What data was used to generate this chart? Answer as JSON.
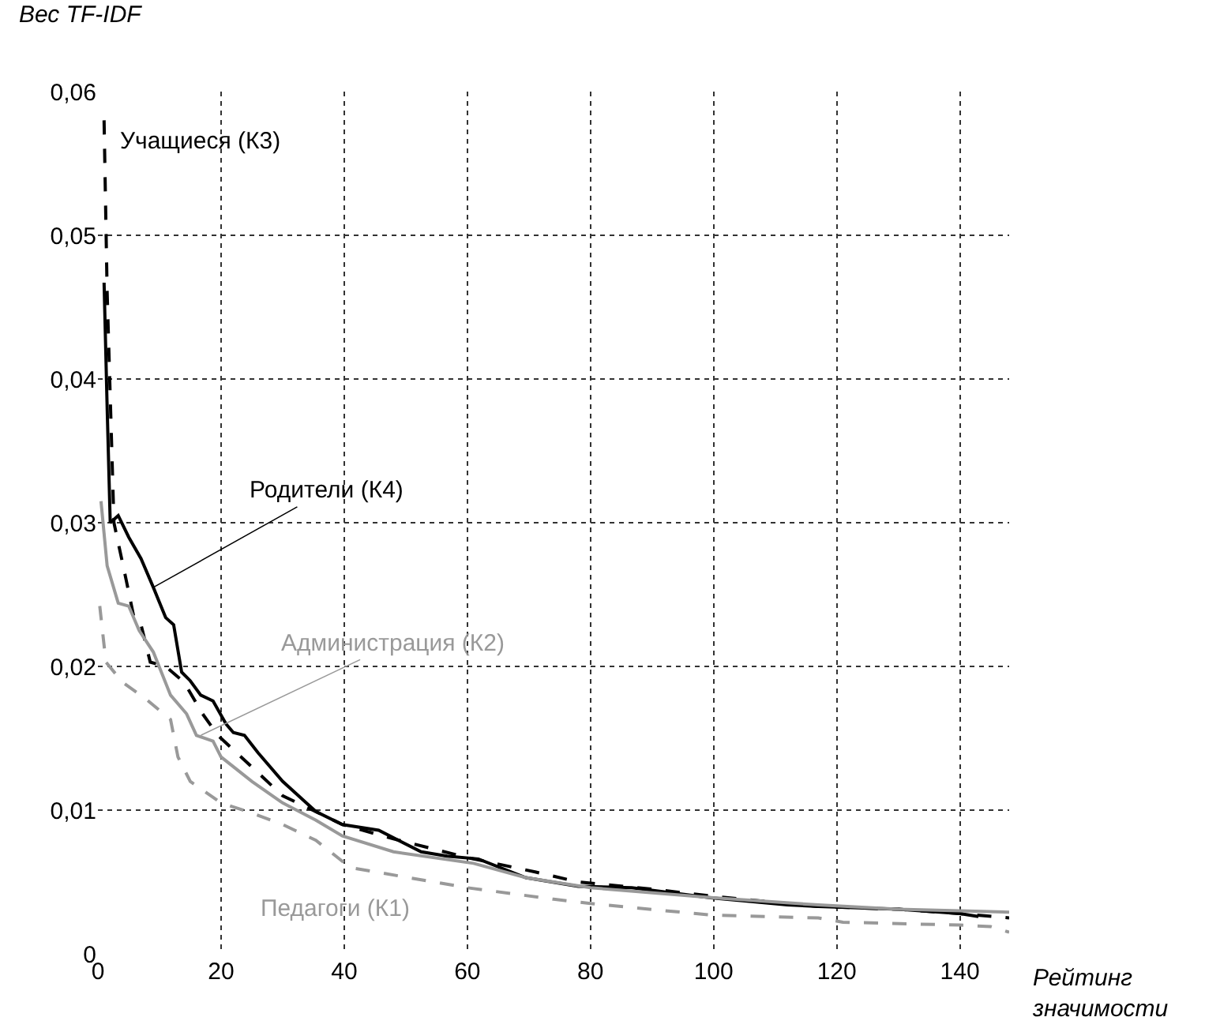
{
  "chart_data": {
    "type": "line",
    "xlabel": "Рейтинг значимости",
    "ylabel": "Вес TF-IDF",
    "xlim": [
      0,
      148
    ],
    "xticks": [
      0,
      20,
      40,
      60,
      80,
      100,
      120,
      140
    ],
    "ylim": [
      0,
      0.06
    ],
    "yticks": [
      0,
      {
        "value": 0.01,
        "label": "0,01"
      },
      {
        "value": 0.02,
        "label": "0,02"
      },
      {
        "value": 0.03,
        "label": "0,03"
      },
      {
        "value": 0.04,
        "label": "0,04"
      },
      {
        "value": 0.05,
        "label": "0,05"
      },
      {
        "value": 0.06,
        "label": "0,06"
      }
    ],
    "grid": true,
    "marker": "none",
    "series": [
      {
        "color": "#000000",
        "line_style": "dashed",
        "x": [
          1,
          1.5,
          2.6,
          4.6,
          5.9,
          7,
          8.5,
          11,
          14,
          17,
          19.5,
          25,
          30,
          35.4,
          39.7,
          48,
          60,
          71,
          78,
          90,
          100,
          117,
          130,
          140,
          148
        ],
        "values": [
          0.058,
          0.046,
          0.03,
          0.026,
          0.0233,
          0.0229,
          0.0203,
          0.02,
          0.0189,
          0.0167,
          0.0152,
          0.013,
          0.011,
          0.0099,
          0.009,
          0.008,
          0.0067,
          0.0057,
          0.005,
          0.0045,
          0.004,
          0.0033,
          0.0031,
          0.0028,
          0.0025
        ]
      },
      {
        "color": "#000000",
        "line_style": "solid",
        "x": [
          1,
          1.5,
          2,
          3.3,
          5,
          7,
          9,
          11,
          12.3,
          13.6,
          15,
          16.7,
          18.7,
          20.8,
          22,
          23.8,
          26,
          30,
          35.4,
          39.7,
          45.6,
          52.5,
          56.7,
          61.8,
          69.5,
          78,
          86.7,
          99.5,
          112,
          117,
          130,
          140,
          143
        ],
        "values": [
          0.0467,
          0.038,
          0.03,
          0.0305,
          0.029,
          0.0275,
          0.0255,
          0.0234,
          0.0229,
          0.0196,
          0.019,
          0.018,
          0.0176,
          0.016,
          0.0154,
          0.0152,
          0.014,
          0.012,
          0.0099,
          0.009,
          0.0086,
          0.0071,
          0.0068,
          0.0066,
          0.0053,
          0.0047,
          0.0046,
          0.0039,
          0.0034,
          0.0033,
          0.0031,
          0.0028,
          0.0026
        ]
      },
      {
        "color": "#999999",
        "line_style": "solid",
        "x": [
          0.5,
          1.5,
          3.3,
          5,
          6.7,
          9,
          11.8,
          14.4,
          16,
          18.7,
          20,
          25,
          30,
          35.4,
          39.7,
          48,
          61,
          69.5,
          80,
          100,
          117,
          130,
          140,
          148
        ],
        "values": [
          0.0315,
          0.027,
          0.0244,
          0.0242,
          0.0225,
          0.021,
          0.018,
          0.0167,
          0.0152,
          0.0148,
          0.0137,
          0.012,
          0.0105,
          0.0093,
          0.0082,
          0.0071,
          0.0063,
          0.0053,
          0.0046,
          0.0039,
          0.0034,
          0.0031,
          0.003,
          0.0029
        ]
      },
      {
        "color": "#999999",
        "line_style": "dashed",
        "x": [
          0.3,
          1.3,
          4,
          7.6,
          11.8,
          13,
          15,
          20,
          25,
          30,
          35.4,
          41,
          60,
          74,
          80,
          99.5,
          117,
          121,
          140,
          145,
          148
        ],
        "values": [
          0.0242,
          0.0203,
          0.0189,
          0.0178,
          0.0163,
          0.0137,
          0.012,
          0.0105,
          0.0098,
          0.009,
          0.0079,
          0.006,
          0.0046,
          0.0038,
          0.0035,
          0.0027,
          0.0025,
          0.0022,
          0.002,
          0.0019,
          0.0015
        ]
      }
    ],
    "annotations": [
      {
        "text": "Учащиеся (К3)",
        "x": 1,
        "y": 0.0565
      },
      {
        "text": "Родители (К4)",
        "x": 9,
        "y": 0.0255
      },
      {
        "text": "Администрация (К2)",
        "x": 16.7,
        "y": 0.0152
      },
      {
        "text": "Педагоги (К1)",
        "x": 35,
        "y": 0.008
      }
    ]
  }
}
